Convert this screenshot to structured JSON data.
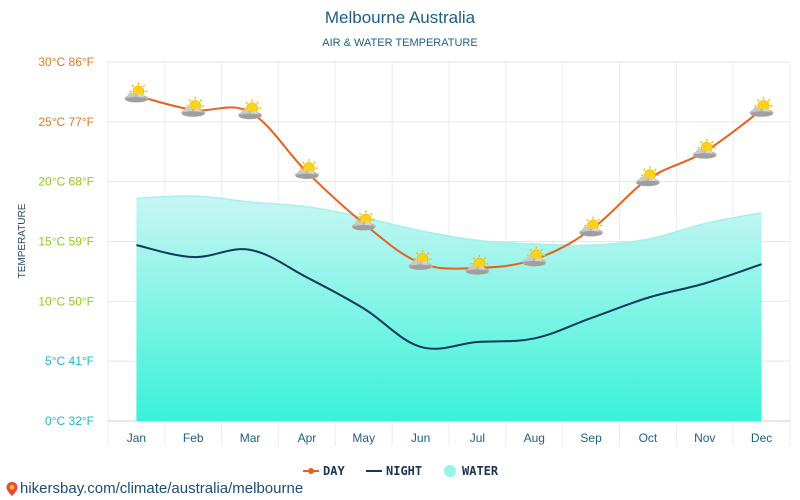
{
  "header": {
    "title": "Melbourne Australia",
    "subtitle": "AIR & WATER TEMPERATURE"
  },
  "footer": {
    "source": "hikersbay.com/climate/australia/melbourne",
    "icon": "map-pin-icon"
  },
  "colors": {
    "day": "#e8601c",
    "night": "#0e3a5b",
    "water_fill_top": "#c8f6f3",
    "water_fill_bottom": "#39f2d8",
    "title": "#1c5f85",
    "weather_icon": "partly-sunny-icon"
  },
  "chart_data": {
    "type": "line",
    "title": "Melbourne Australia",
    "subtitle": "AIR & WATER TEMPERATURE",
    "ylabel": "TEMPERATURE",
    "categories": [
      "Jan",
      "Feb",
      "Mar",
      "Apr",
      "May",
      "Jun",
      "Jul",
      "Aug",
      "Sep",
      "Oct",
      "Nov",
      "Dec"
    ],
    "ylim": [
      0,
      30
    ],
    "yticks": [
      {
        "value": 0,
        "label": "0°C 32°F",
        "color": "#1fb5c9"
      },
      {
        "value": 5,
        "label": "5°C 41°F",
        "color": "#1fb5c9"
      },
      {
        "value": 10,
        "label": "10°C 50°F",
        "color": "#8ccc1a"
      },
      {
        "value": 15,
        "label": "15°C 59°F",
        "color": "#8ccc1a"
      },
      {
        "value": 20,
        "label": "20°C 68°F",
        "color": "#8ccc1a"
      },
      {
        "value": 25,
        "label": "25°C 77°F",
        "color": "#e27a1b"
      },
      {
        "value": 30,
        "label": "30°C 86°F",
        "color": "#e27a1b"
      }
    ],
    "grid": true,
    "legend_position": "bottom-center",
    "series": [
      {
        "name": "DAY",
        "type": "line",
        "values": [
          27.2,
          26.0,
          25.8,
          20.8,
          16.5,
          13.2,
          12.8,
          13.5,
          16.0,
          20.2,
          22.5,
          26.0
        ]
      },
      {
        "name": "NIGHT",
        "type": "line",
        "values": [
          14.7,
          13.7,
          14.3,
          12.0,
          9.4,
          6.2,
          6.6,
          6.9,
          8.6,
          10.3,
          11.5,
          13.1
        ]
      },
      {
        "name": "WATER",
        "type": "area",
        "values": [
          18.6,
          18.8,
          18.3,
          17.9,
          17.0,
          15.9,
          15.1,
          14.8,
          14.7,
          15.2,
          16.5,
          17.4
        ]
      }
    ]
  }
}
